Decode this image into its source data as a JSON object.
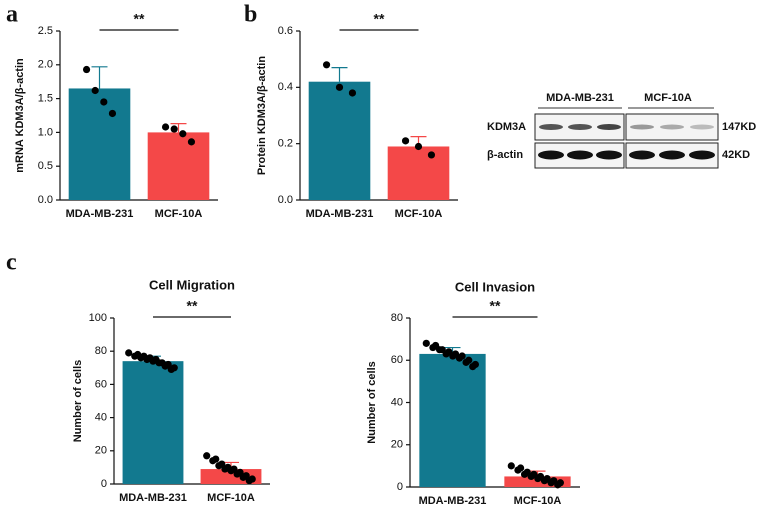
{
  "panel_labels": [
    "a",
    "b",
    "c"
  ],
  "blot": {
    "groups": [
      "MDA-MB-231",
      "MCF-10A"
    ],
    "rows": [
      "KDM3A",
      "β-actin"
    ],
    "sizes": [
      "147KD",
      "42KD"
    ]
  },
  "chart_data": [
    {
      "type": "bar",
      "y_label": "mRNA KDM3A/β-actin",
      "annotation": "**",
      "categories": [
        "MDA-MB-231",
        "MCF-10A"
      ],
      "values": [
        1.65,
        1.0
      ],
      "errors": [
        0.32,
        0.13
      ],
      "points": [
        [
          1.93,
          1.62,
          1.45,
          1.28
        ],
        [
          1.08,
          1.05,
          0.98,
          0.86
        ]
      ],
      "colors": [
        "#12798f",
        "#f44848"
      ],
      "ylim": [
        0,
        2.5
      ],
      "yticks": [
        {
          "value": 0,
          "label": "0.0"
        },
        0.5,
        {
          "value": 1,
          "label": "1.0"
        },
        1.5,
        {
          "value": 2,
          "label": "2.0"
        },
        2.5
      ]
    },
    {
      "type": "bar",
      "y_label": "Protein KDM3A/β-actin",
      "annotation": "**",
      "categories": [
        "MDA-MB-231",
        "MCF-10A"
      ],
      "values": [
        0.42,
        0.19
      ],
      "errors": [
        0.05,
        0.035
      ],
      "points": [
        [
          0.48,
          0.4,
          0.38
        ],
        [
          0.21,
          0.19,
          0.16
        ]
      ],
      "colors": [
        "#12798f",
        "#f44848"
      ],
      "ylim": [
        0,
        0.6
      ],
      "yticks": [
        {
          "value": 0,
          "label": "0.0"
        },
        0.2,
        0.4,
        0.6
      ]
    },
    {
      "type": "bar",
      "title": "Cell Migration",
      "y_label": "Number of cells",
      "annotation": "**",
      "categories": [
        "MDA-MB-231",
        "MCF-10A"
      ],
      "values": [
        74,
        9
      ],
      "errors": [
        3,
        4
      ],
      "points": [
        [
          79,
          78,
          77,
          77,
          76,
          76,
          75,
          75,
          74,
          73,
          73,
          72,
          71,
          70,
          69
        ],
        [
          17,
          15,
          14,
          12,
          11,
          10,
          9,
          9,
          8,
          7,
          6,
          5,
          4,
          3,
          2
        ]
      ],
      "colors": [
        "#12798f",
        "#f44848"
      ],
      "ylim": [
        0,
        100
      ],
      "yticks": [
        0,
        20,
        40,
        60,
        80,
        100
      ]
    },
    {
      "type": "bar",
      "title": "Cell Invasion",
      "y_label": "Number of cells",
      "annotation": "**",
      "categories": [
        "MDA-MB-231",
        "MCF-10A"
      ],
      "values": [
        63,
        5
      ],
      "errors": [
        3,
        2.5
      ],
      "points": [
        [
          68,
          67,
          66,
          65,
          65,
          64,
          63,
          63,
          62,
          62,
          61,
          60,
          59,
          58,
          57
        ],
        [
          10,
          9,
          8,
          7,
          6,
          6,
          5,
          5,
          4,
          4,
          3,
          3,
          2,
          2,
          1
        ]
      ],
      "colors": [
        "#12798f",
        "#f44848"
      ],
      "ylim": [
        0,
        80
      ],
      "yticks": [
        0,
        20,
        40,
        60,
        80
      ]
    }
  ]
}
